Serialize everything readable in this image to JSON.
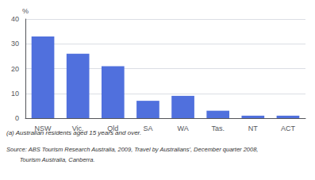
{
  "chart_data": {
    "type": "bar",
    "ylabel": "%",
    "categories": [
      "NSW",
      "Vic.",
      "Qld",
      "SA",
      "WA",
      "Tas.",
      "NT",
      "ACT"
    ],
    "values": [
      33.0,
      26.0,
      21.0,
      7.0,
      9.0,
      3.0,
      1.0,
      1.0
    ],
    "ylim": [
      0,
      40
    ],
    "yticks": [
      0,
      10,
      20,
      30,
      40
    ],
    "grid": true,
    "annotations": [
      "(a) Australian residents aged 15 years and over.",
      "Source: ABS Tourism Research Australia, 2009, Travel by Australians', December quarter 2008,",
      "        Tourism Australia, Canberra."
    ]
  }
}
